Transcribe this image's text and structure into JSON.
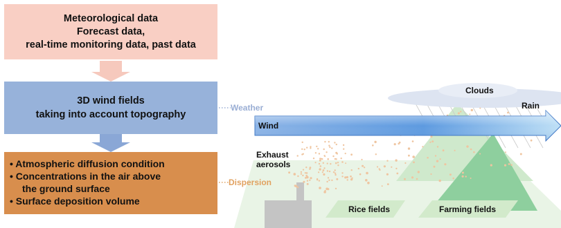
{
  "boxes": {
    "meteorological": {
      "line1": "Meteorological data",
      "line2": "Forecast data,",
      "line3": "real-time monitoring data, past data"
    },
    "wind_fields": {
      "line1": "3D wind fields",
      "line2": "taking into account topography"
    },
    "dispersion": {
      "items": [
        "• Atmospheric diffusion condition",
        "• Concentrations in the air above",
        "the ground surface",
        "• Surface deposition volume"
      ]
    }
  },
  "labels": {
    "weather": "Weather",
    "dispersion": "Dispersion",
    "clouds": "Clouds",
    "rain": "Rain",
    "wind": "Wind",
    "exhaust": "Exhaust",
    "aerosols": "aerosols",
    "rice_fields": "Rice fields",
    "farming_fields": "Farming fields"
  },
  "colors": {
    "met_box": "#f9cfc4",
    "wind_box": "#97b2da",
    "disp_box": "#d88e4d",
    "arrow_pink": "#f6c9bd",
    "arrow_blue": "#8aa7d6",
    "ground": "#e8f3e4",
    "mountain": "#8fcf9f",
    "field": "#cfe8c8",
    "cloud": "#dfe6f2",
    "aerosol": "#f1c9a7"
  }
}
